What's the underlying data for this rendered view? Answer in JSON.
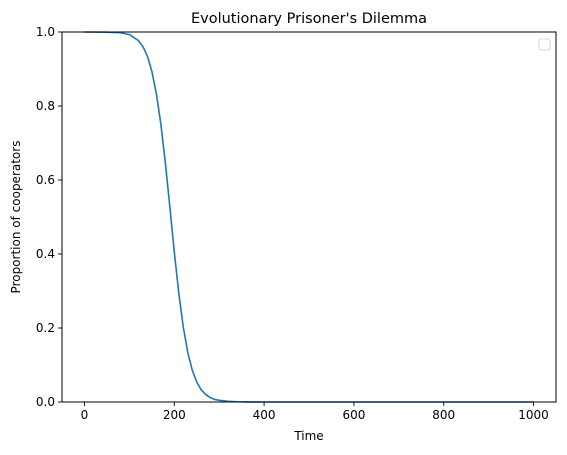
{
  "chart_data": {
    "type": "line",
    "title": "Evolutionary Prisoner's Dilemma",
    "xlabel": "Time",
    "ylabel": "Proportion of cooperators",
    "xlim": [
      -50,
      1050
    ],
    "ylim": [
      0,
      1.0
    ],
    "xticks": [
      0,
      200,
      400,
      600,
      800,
      1000
    ],
    "yticks": [
      0.0,
      0.2,
      0.4,
      0.6,
      0.8,
      1.0
    ],
    "xtick_labels": [
      "0",
      "200",
      "400",
      "600",
      "800",
      "1000"
    ],
    "ytick_labels": [
      "0.0",
      "0.2",
      "0.4",
      "0.6",
      "0.8",
      "1.0"
    ],
    "grid": false,
    "legend": {
      "placement": "top-right",
      "entries": []
    },
    "series": [
      {
        "color": "#1f77b4",
        "x": [
          0,
          50,
          80,
          100,
          120,
          130,
          140,
          150,
          160,
          170,
          180,
          190,
          200,
          210,
          220,
          230,
          240,
          250,
          260,
          270,
          280,
          290,
          300,
          320,
          340,
          360,
          380,
          400,
          450,
          500,
          600,
          700,
          800,
          900,
          1000
        ],
        "y": [
          1.0,
          0.9995,
          0.998,
          0.993,
          0.977,
          0.961,
          0.935,
          0.894,
          0.834,
          0.752,
          0.648,
          0.529,
          0.406,
          0.295,
          0.203,
          0.134,
          0.086,
          0.054,
          0.033,
          0.02,
          0.012,
          0.007,
          0.0045,
          0.0018,
          0.0007,
          0.0003,
          0.0001,
          0.0,
          0.0,
          0.0,
          0.0,
          0.0,
          0.0,
          0.0,
          0.0
        ]
      }
    ]
  }
}
